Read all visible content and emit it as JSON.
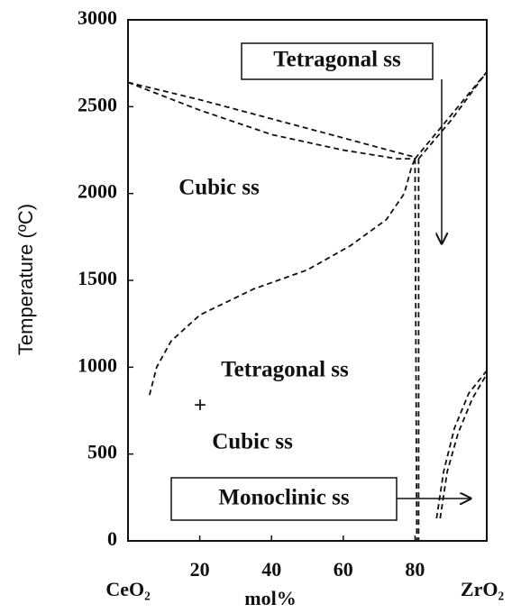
{
  "chart_data": {
    "type": "line",
    "xlabel": "mol%",
    "ylabel": "Temperature (ºC)",
    "x_end_labels": [
      "CeO₂",
      "ZrO₂"
    ],
    "xlim": [
      0,
      100
    ],
    "xticks": [
      20,
      40,
      60,
      80
    ],
    "ylim": [
      0,
      3000
    ],
    "yticks": [
      0,
      500,
      1000,
      1500,
      2000,
      2500,
      3000
    ],
    "line_style": "dashed",
    "annotations": [
      "Tetragonal ss",
      "Cubic ss",
      "Tetragonal ss",
      "+",
      "Cubic ss",
      "Monoclinic ss"
    ],
    "series": [
      {
        "color": "#111",
        "x": [
          0,
          20,
          40,
          60,
          78,
          80
        ],
        "values": [
          2640,
          2540,
          2430,
          2320,
          2220,
          2210
        ]
      },
      {
        "color": "#111",
        "x": [
          0,
          20,
          40,
          60,
          75,
          80
        ],
        "values": [
          2640,
          2480,
          2340,
          2250,
          2200,
          2200
        ]
      },
      {
        "color": "#111",
        "x": [
          80,
          90,
          100
        ],
        "values": [
          2200,
          2450,
          2700
        ]
      },
      {
        "color": "#111",
        "x": [
          81,
          90,
          100
        ],
        "values": [
          2200,
          2420,
          2700
        ]
      },
      {
        "color": "#111",
        "x": [
          6,
          8,
          12,
          20,
          35,
          50,
          62,
          72,
          77,
          79,
          80
        ],
        "values": [
          840,
          1000,
          1150,
          1300,
          1450,
          1560,
          1700,
          1850,
          2000,
          2150,
          2200
        ]
      },
      {
        "color": "#111",
        "x": [
          81,
          81
        ],
        "values": [
          2200,
          0
        ]
      },
      {
        "color": "#111",
        "x": [
          80,
          80.5
        ],
        "values": [
          2200,
          0
        ]
      },
      {
        "color": "#111",
        "x": [
          86,
          88,
          91,
          95,
          100
        ],
        "values": [
          130,
          400,
          650,
          850,
          980
        ]
      },
      {
        "color": "#111",
        "x": [
          87,
          89,
          92,
          96,
          100
        ],
        "values": [
          130,
          400,
          620,
          820,
          960
        ]
      }
    ]
  }
}
